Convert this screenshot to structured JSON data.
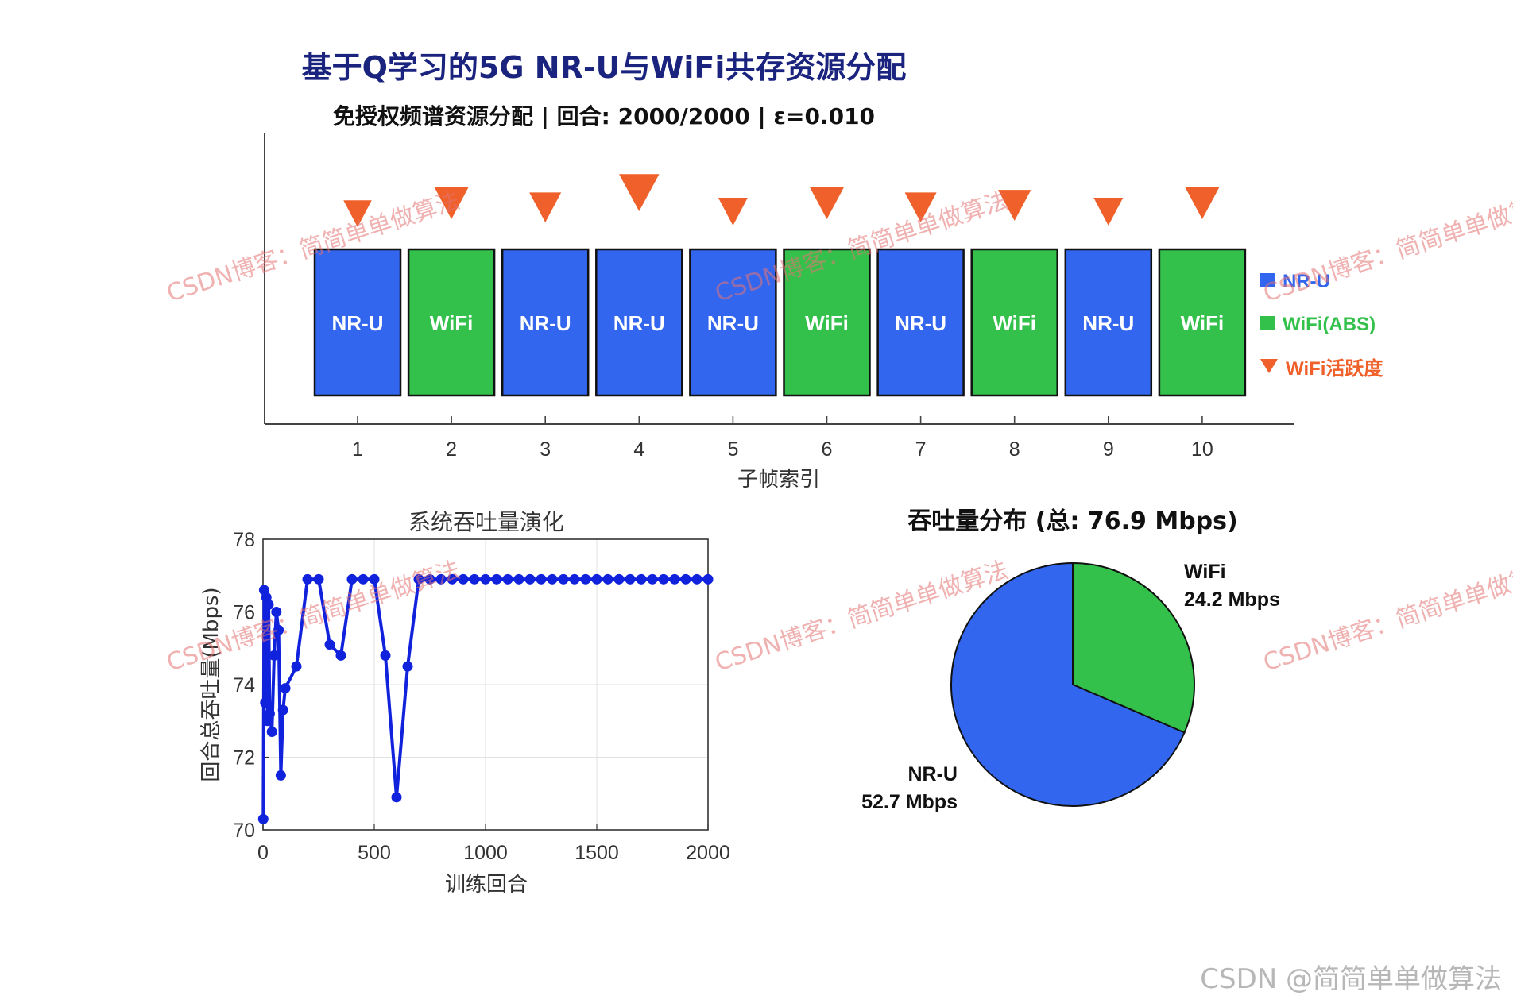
{
  "figure": {
    "title": "基于Q学习的5G NR-U与WiFi共存资源分配",
    "subtitle": "免授权频谱资源分配 | 回合: 2000/2000 | ε=0.010",
    "watermark": "CSDN博客：简简单单做算法",
    "footer_watermark": "CSDN @简简单单做算法"
  },
  "colors": {
    "nru": "#3366ee",
    "wifi": "#33c14b",
    "activity": "#f0602a",
    "line": "#1122dd",
    "title": "#1a237e"
  },
  "chart_data": [
    {
      "type": "bar",
      "name": "subframe-allocation",
      "xlabel": "子帧索引",
      "categories": [
        "1",
        "2",
        "3",
        "4",
        "5",
        "6",
        "7",
        "8",
        "9",
        "10"
      ],
      "allocation": [
        "NR-U",
        "WiFi",
        "NR-U",
        "NR-U",
        "NR-U",
        "WiFi",
        "NR-U",
        "WiFi",
        "NR-U",
        "WiFi"
      ],
      "wifi_activity": [
        0.45,
        0.7,
        0.6,
        0.95,
        0.5,
        0.7,
        0.6,
        0.65,
        0.5,
        0.7
      ],
      "legend": [
        "NR-U",
        "WiFi(ABS)",
        "WiFi活跃度"
      ],
      "legend_position": "right"
    },
    {
      "type": "line",
      "name": "throughput-evolution",
      "title": "系统吞吐量演化",
      "xlabel": "训练回合",
      "ylabel": "回合总吞吐量(Mbps)",
      "xlim": [
        0,
        2000
      ],
      "ylim": [
        70,
        78
      ],
      "xticks": [
        "0",
        "500",
        "1000",
        "1500",
        "2000"
      ],
      "yticks": [
        "70",
        "72",
        "74",
        "76",
        "78"
      ],
      "grid": true,
      "x": [
        1,
        5,
        10,
        15,
        20,
        25,
        30,
        40,
        50,
        60,
        70,
        80,
        90,
        100,
        150,
        200,
        250,
        300,
        350,
        400,
        450,
        500,
        550,
        600,
        650,
        700,
        750,
        800,
        850,
        900,
        950,
        1000,
        1050,
        1100,
        1150,
        1200,
        1250,
        1300,
        1350,
        1400,
        1450,
        1500,
        1550,
        1600,
        1650,
        1700,
        1750,
        1800,
        1850,
        1900,
        1950,
        2000
      ],
      "y": [
        70.3,
        76.6,
        73.5,
        76.4,
        73.0,
        76.2,
        73.2,
        72.7,
        74.8,
        76.0,
        75.5,
        71.5,
        73.3,
        73.9,
        74.5,
        76.9,
        76.9,
        75.1,
        74.8,
        76.9,
        76.9,
        76.9,
        74.8,
        70.9,
        74.5,
        76.9,
        76.9,
        76.9,
        76.9,
        76.9,
        76.9,
        76.9,
        76.9,
        76.9,
        76.9,
        76.9,
        76.9,
        76.9,
        76.9,
        76.9,
        76.9,
        76.9,
        76.9,
        76.9,
        76.9,
        76.9,
        76.9,
        76.9,
        76.9,
        76.9,
        76.9,
        76.9
      ]
    },
    {
      "type": "pie",
      "name": "throughput-distribution",
      "title": "吞吐量分布 (总: 76.9 Mbps)",
      "slices": [
        {
          "label": "WiFi",
          "value": 24.2,
          "value_label": "24.2 Mbps"
        },
        {
          "label": "NR-U",
          "value": 52.7,
          "value_label": "52.7 Mbps"
        }
      ]
    }
  ]
}
